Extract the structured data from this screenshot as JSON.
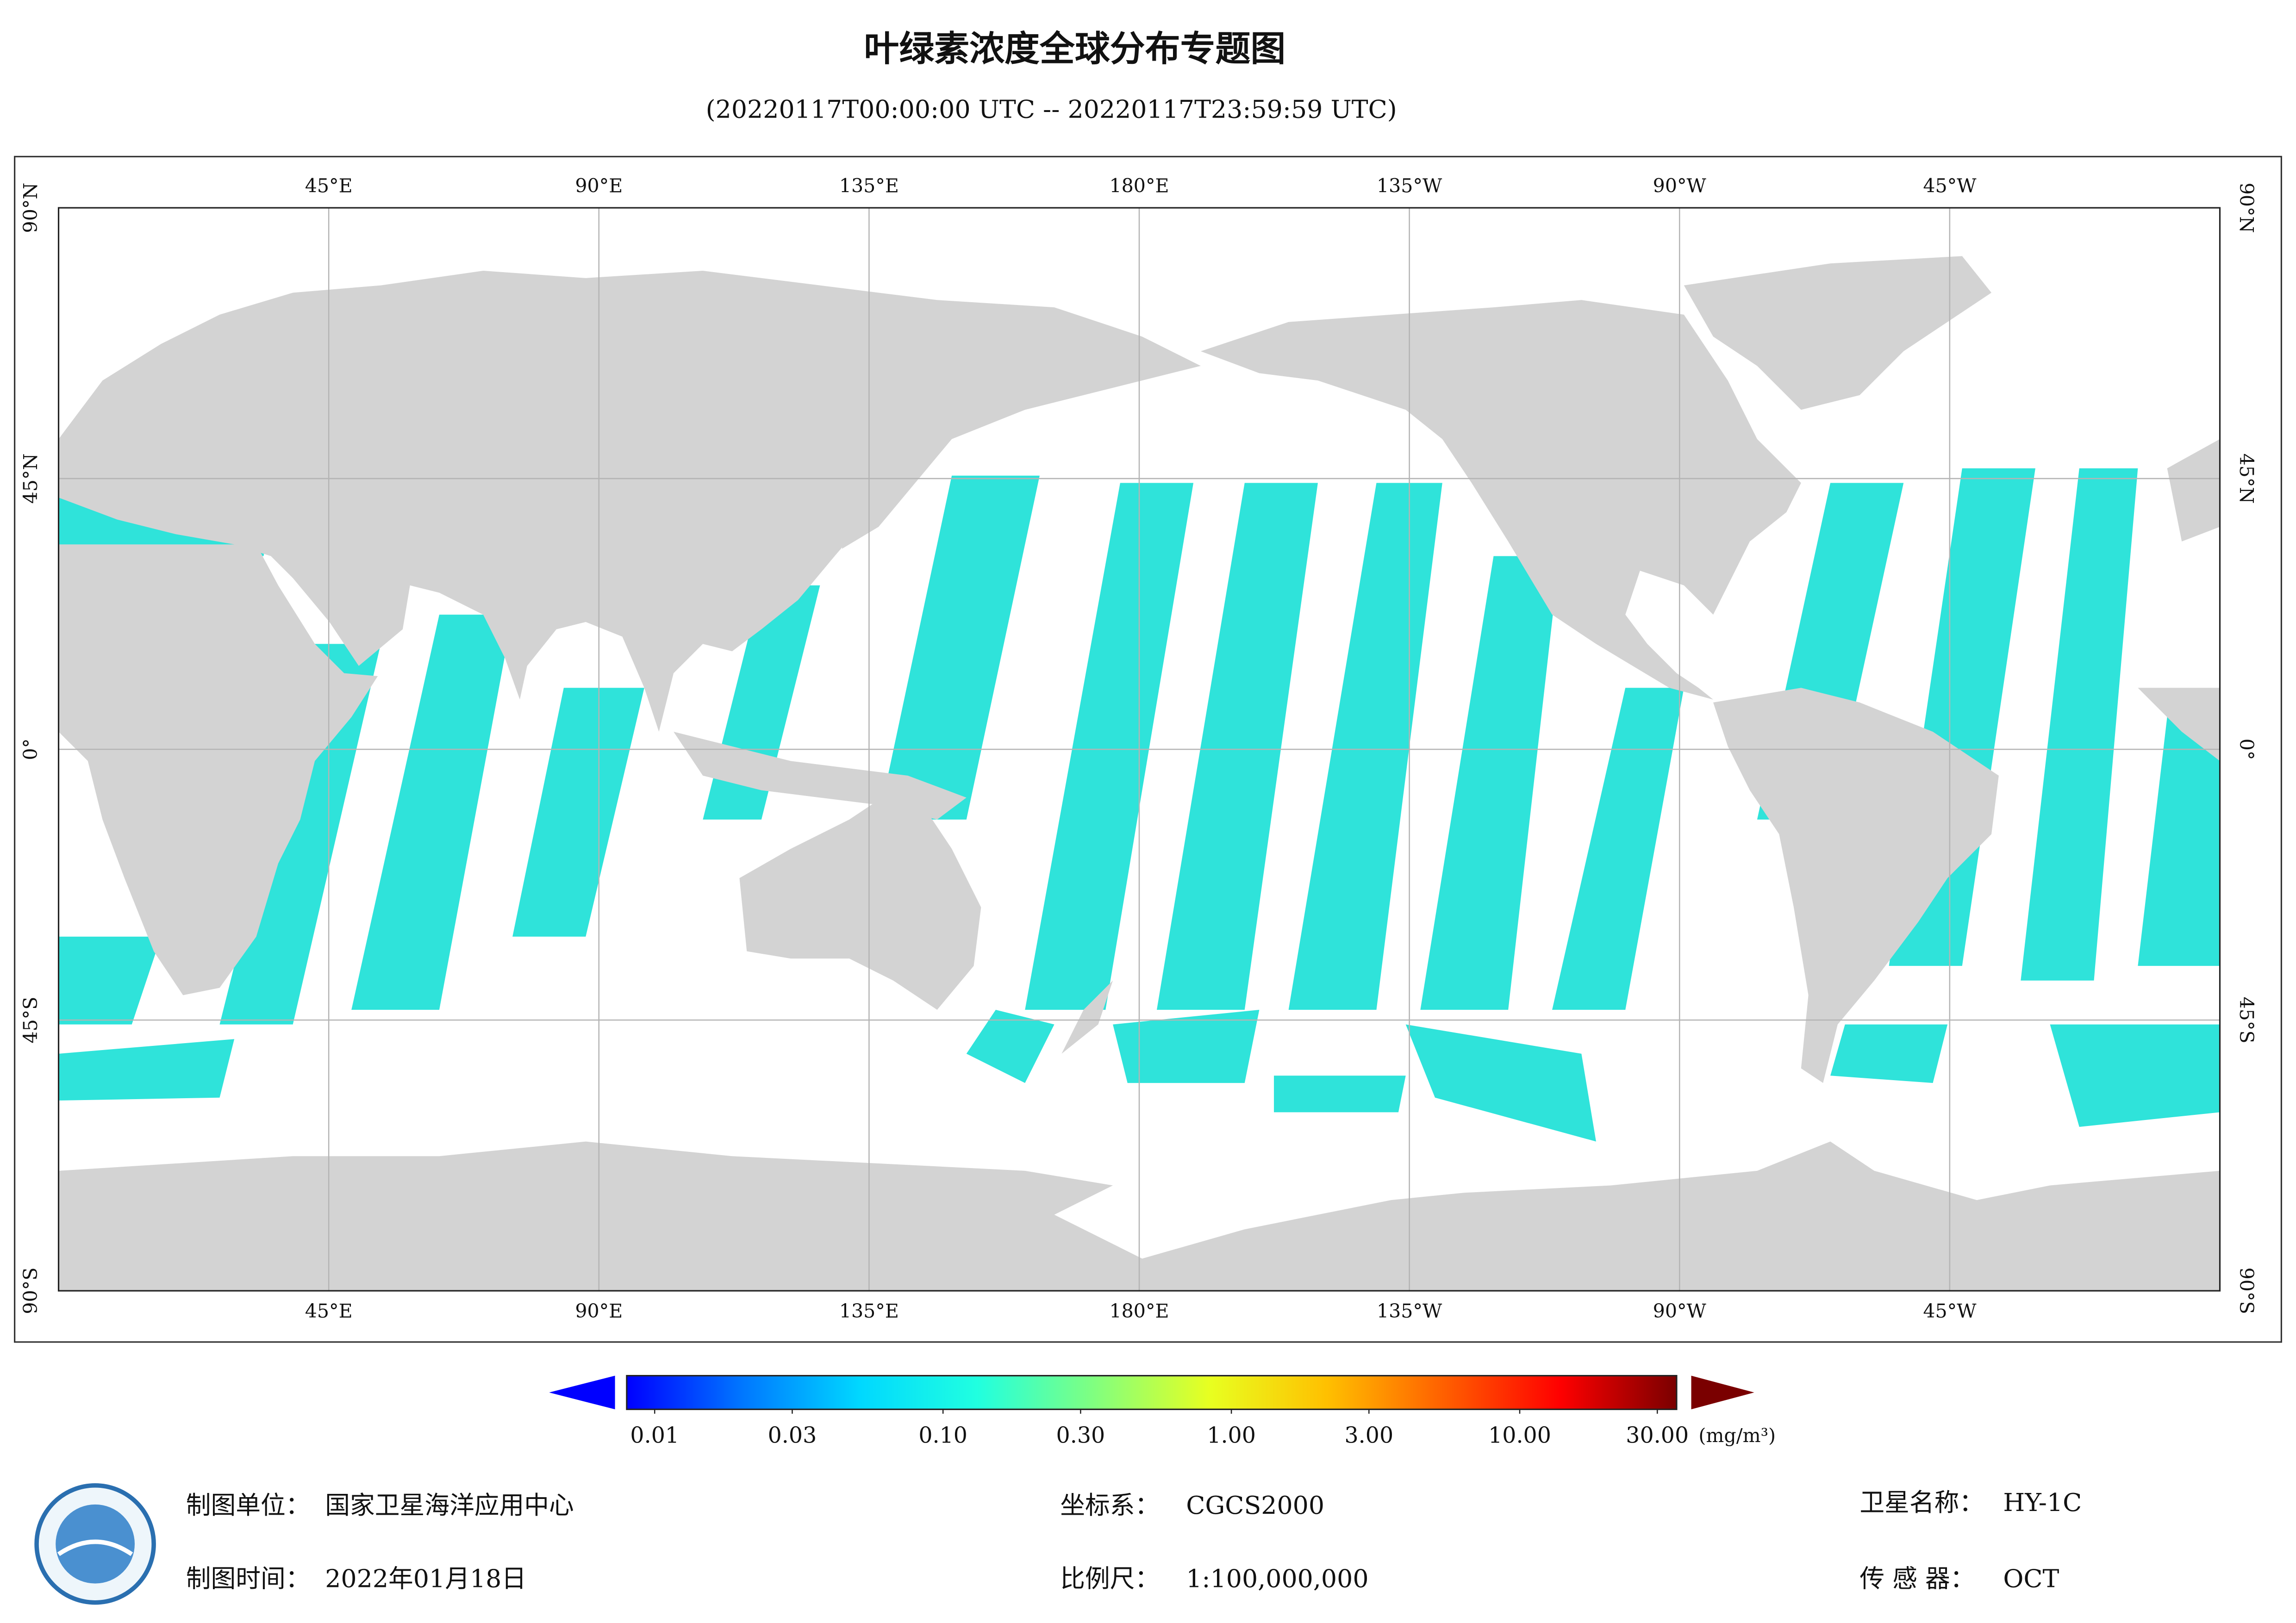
{
  "header": {
    "title": "叶绿素浓度全球分布专题图",
    "subtitle": "(20220117T00:00:00 UTC -- 20220117T23:59:59 UTC)"
  },
  "map": {
    "lon_labels": [
      "45°E",
      "90°E",
      "135°E",
      "180°E",
      "135°W",
      "90°W",
      "45°W"
    ],
    "lat_labels": [
      "90°N",
      "45°N",
      "0°",
      "45°S",
      "90°S"
    ]
  },
  "colorbar": {
    "lim": [
      0.008,
      35
    ],
    "log": true,
    "colors": [
      "#0000ff",
      "#0078ff",
      "#00d8ff",
      "#20ffe0",
      "#80ff80",
      "#e8ff20",
      "#ffc000",
      "#ff6000",
      "#ff0000",
      "#7a0000"
    ],
    "ticks": [
      {
        "value": 0.01,
        "label": "0.01"
      },
      {
        "value": 0.03,
        "label": "0.03"
      },
      {
        "value": 0.1,
        "label": "0.10"
      },
      {
        "value": 0.3,
        "label": "0.30"
      },
      {
        "value": 1,
        "label": "1.00"
      },
      {
        "value": 3,
        "label": "3.00"
      },
      {
        "value": 10,
        "label": "10.00"
      },
      {
        "value": 30,
        "label": "30.00"
      }
    ],
    "unit": "(mg/m³)"
  },
  "footer": {
    "producer": {
      "label": "制图单位：",
      "value": "国家卫星海洋应用中心"
    },
    "date": {
      "label": "制图时间：",
      "value": "2022年01月18日"
    },
    "crs": {
      "label": "坐标系：",
      "value": "CGCS2000"
    },
    "scale": {
      "label": "比例尺：",
      "value": "1:100,000,000"
    },
    "satellite": {
      "label": "卫星名称：",
      "value": "HY-1C"
    },
    "sensor": {
      "label": "传 感 器：",
      "value": "OCT"
    }
  }
}
